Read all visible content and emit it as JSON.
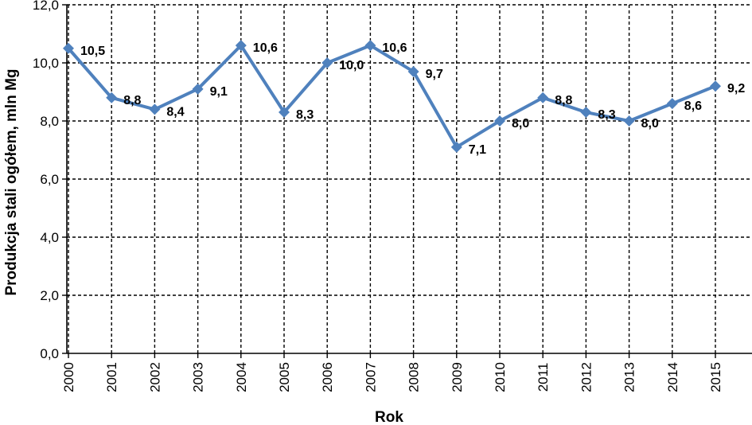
{
  "chart_data": {
    "type": "line",
    "title": "",
    "xlabel": "Rok",
    "ylabel": "Produkcja stali ogółem, mln Mg",
    "ylim": [
      0,
      12
    ],
    "yticks": [
      "0,0",
      "2,0",
      "4,0",
      "6,0",
      "8,0",
      "10,0",
      "12,0"
    ],
    "categories": [
      "2000",
      "2001",
      "2002",
      "2003",
      "2004",
      "2005",
      "2006",
      "2007",
      "2008",
      "2009",
      "2010",
      "2011",
      "2012",
      "2013",
      "2014",
      "2015"
    ],
    "series": [
      {
        "values": [
          10.5,
          8.8,
          8.4,
          9.1,
          10.6,
          8.3,
          10.0,
          10.6,
          9.7,
          7.1,
          8.0,
          8.8,
          8.3,
          8.0,
          8.6,
          9.2
        ],
        "labels": [
          "10,5",
          "8,8",
          "8,4",
          "9,1",
          "10,6",
          "8,3",
          "10,0",
          "10,6",
          "9,7",
          "7,1",
          "8,0",
          "8,8",
          "8,3",
          "8,0",
          "8,6",
          "9,2"
        ],
        "color": "#4F81BD",
        "marker": "diamond"
      }
    ],
    "grid": true,
    "legend": "none",
    "colors": {
      "series": "#4F81BD",
      "grid": "#000000",
      "axis": "#000000"
    }
  }
}
